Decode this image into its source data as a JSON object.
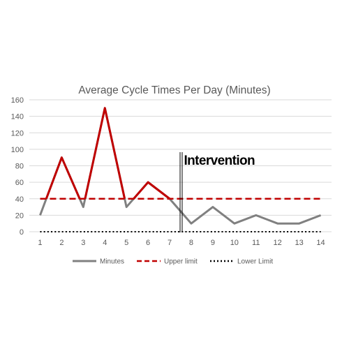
{
  "chart_data": {
    "type": "line",
    "title": "Average Cycle Times Per Day (Minutes)",
    "xlabel": "",
    "ylabel": "",
    "categories": [
      "1",
      "2",
      "3",
      "4",
      "5",
      "6",
      "7",
      "8",
      "9",
      "10",
      "11",
      "12",
      "13",
      "14"
    ],
    "ylim": [
      0,
      160
    ],
    "yticks": [
      "0",
      "20",
      "40",
      "60",
      "80",
      "100",
      "120",
      "140",
      "160"
    ],
    "grid": true,
    "legend_position": "bottom",
    "series": [
      {
        "name": "Minutes",
        "values": [
          20,
          90,
          30,
          150,
          30,
          60,
          40,
          10,
          30,
          10,
          20,
          10,
          10,
          20
        ],
        "color": "#808080",
        "highlight_color": "#c00000",
        "style": "solid"
      },
      {
        "name": "Upper limit",
        "values": [
          40,
          40,
          40,
          40,
          40,
          40,
          40,
          40,
          40,
          40,
          40,
          40,
          40,
          40
        ],
        "color": "#c00000",
        "style": "dashed"
      },
      {
        "name": "Lower Limit",
        "values": [
          0,
          0,
          0,
          0,
          0,
          0,
          0,
          0,
          0,
          0,
          0,
          0,
          0,
          0
        ],
        "color": "#000000",
        "style": "dotted"
      }
    ],
    "annotation": {
      "text": "Intervention",
      "between": [
        "7",
        "8"
      ]
    }
  }
}
